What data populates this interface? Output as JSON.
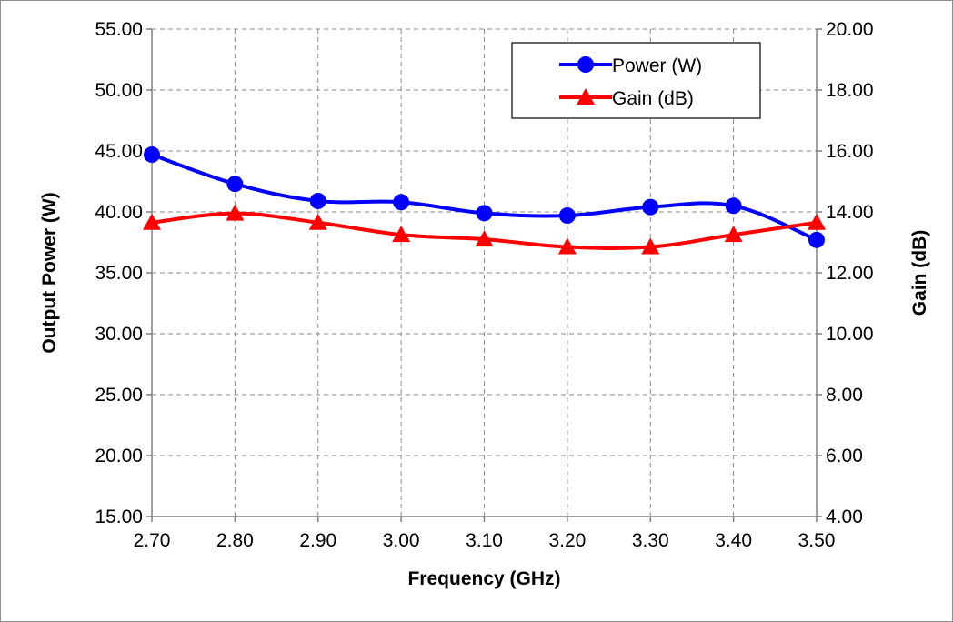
{
  "chart_data": {
    "type": "line",
    "x": [
      2.7,
      2.8,
      2.9,
      3.0,
      3.1,
      3.2,
      3.3,
      3.4,
      3.5
    ],
    "x_tick_labels": [
      "2.70",
      "2.80",
      "2.90",
      "3.00",
      "3.10",
      "3.20",
      "3.30",
      "3.40",
      "3.50"
    ],
    "xlim": [
      2.7,
      3.5
    ],
    "xlabel": "Frequency (GHz)",
    "ylabel": "Output Power (W)",
    "y2label": "Gain (dB)",
    "ylim": [
      15,
      55
    ],
    "y2lim": [
      4,
      20
    ],
    "y_tick_labels": [
      "15.00",
      "20.00",
      "25.00",
      "30.00",
      "35.00",
      "40.00",
      "45.00",
      "50.00",
      "55.00"
    ],
    "y2_tick_labels": [
      "4.00",
      "6.00",
      "8.00",
      "10.00",
      "12.00",
      "14.00",
      "16.00",
      "18.00",
      "20.00"
    ],
    "grid": true,
    "legend_position": "top-right",
    "series": [
      {
        "name": "Power (W)",
        "axis": "left",
        "color": "#0000ff",
        "marker": "circle",
        "values": [
          44.7,
          42.3,
          40.9,
          40.8,
          39.9,
          39.7,
          40.4,
          40.5,
          37.7
        ]
      },
      {
        "name": "Gain (dB)",
        "axis": "right",
        "color": "#ff0000",
        "marker": "triangle",
        "values": [
          13.65,
          13.95,
          13.65,
          13.25,
          13.1,
          12.85,
          12.85,
          13.25,
          13.65
        ]
      }
    ]
  }
}
